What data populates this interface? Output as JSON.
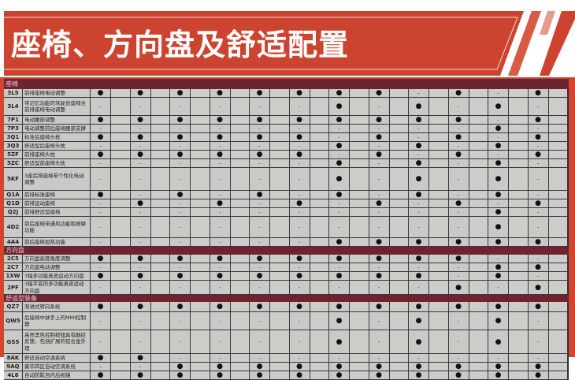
{
  "title": "座椅、方向盘及舒适配置",
  "colors": {
    "banner": "#cc4430",
    "section_bar": "#6e2330",
    "cell": "#c9c9c6"
  },
  "symbols": {
    "standard": "●",
    "not_available": "-"
  },
  "sections": [
    {
      "label": "座椅",
      "rows": [
        {
          "code": "3L5",
          "desc": "前排座椅电动调整",
          "values": [
            "●",
            "●",
            "●",
            "●",
            "●",
            "●",
            "●",
            "●",
            "-",
            "●",
            "-",
            "●"
          ]
        },
        {
          "code": "3L4",
          "desc": "带记忆功能的驾驶员座椅含前排座椅电动调整",
          "values": [
            "-",
            "-",
            "-",
            "-",
            "-",
            "-",
            "●",
            "-",
            "●",
            "-",
            "●",
            "-"
          ]
        },
        {
          "code": "7P1",
          "desc": "电动腰部调整",
          "values": [
            "●",
            "●",
            "●",
            "●",
            "●",
            "●",
            "●",
            "●",
            "●",
            "●",
            "-",
            "●"
          ]
        },
        {
          "code": "7P3",
          "desc": "电动调整前后座椅腰部支撑",
          "values": [
            "-",
            "-",
            "-",
            "-",
            "-",
            "-",
            "-",
            "-",
            "-",
            "-",
            "●",
            "-"
          ]
        },
        {
          "code": "3Q1",
          "desc": "标准后座椅头枕",
          "values": [
            "●",
            "●",
            "●",
            "●",
            "●",
            "●",
            "-",
            "●",
            "-",
            "●",
            "-",
            "●"
          ]
        },
        {
          "code": "3Q3",
          "desc": "舒适型后座椅头枕",
          "values": [
            "-",
            "-",
            "-",
            "-",
            "-",
            "-",
            "●",
            "-",
            "●",
            "-",
            "●",
            "-"
          ]
        },
        {
          "code": "5ZF",
          "desc": "前排座椅头枕",
          "values": [
            "●",
            "●",
            "●",
            "●",
            "●",
            "●",
            "-",
            "●",
            "-",
            "●",
            "-",
            "●"
          ]
        },
        {
          "code": "5ZC",
          "desc": "舒适型前座椅头枕",
          "values": [
            "-",
            "-",
            "-",
            "-",
            "-",
            "-",
            "●",
            "-",
            "●",
            "-",
            "●",
            "-"
          ]
        },
        {
          "code": "5KF",
          "desc": "3座后排座椅带个性化电动调整",
          "values": [
            "-",
            "-",
            "-",
            "-",
            "-",
            "-",
            "●",
            "-",
            "●",
            "-",
            "●",
            "-"
          ]
        },
        {
          "code": "Q1A",
          "desc": "前排标准座椅",
          "values": [
            "●",
            "-",
            "●",
            "-",
            "●",
            "-",
            "●",
            "-",
            "●",
            "-",
            "●",
            "-"
          ]
        },
        {
          "code": "Q1D",
          "desc": "前排运动座椅",
          "values": [
            "-",
            "●",
            "-",
            "●",
            "-",
            "●",
            "-",
            "●",
            "-",
            "●",
            "-",
            "●"
          ]
        },
        {
          "code": "Q2J",
          "desc": "前排舒适型座椅",
          "values": [
            "-",
            "-",
            "-",
            "-",
            "-",
            "-",
            "-",
            "-",
            "-",
            "-",
            "●",
            "-"
          ]
        },
        {
          "code": "4D2",
          "desc": "前后座椅带通风功能和按摩功能",
          "values": [
            "-",
            "-",
            "-",
            "-",
            "-",
            "-",
            "-",
            "-",
            "-",
            "-",
            "●",
            "-"
          ]
        },
        {
          "code": "4A4",
          "desc": "前后座椅加热功能",
          "values": [
            "-",
            "-",
            "-",
            "-",
            "-",
            "-",
            "●",
            "●",
            "●",
            "●",
            "●",
            "●"
          ]
        }
      ]
    },
    {
      "label": "方向盘",
      "rows": [
        {
          "code": "2C5",
          "desc": "方向盘高度角度调整",
          "values": [
            "●",
            "●",
            "●",
            "●",
            "●",
            "●",
            "●",
            "●",
            "●",
            "●",
            "-",
            "-"
          ]
        },
        {
          "code": "2C7",
          "desc": "方向盘电动调整",
          "values": [
            "-",
            "-",
            "-",
            "-",
            "-",
            "-",
            "-",
            "-",
            "-",
            "-",
            "●",
            "●"
          ]
        },
        {
          "code": "1XW",
          "desc": "3辐多功能真皮运动方向盘",
          "values": [
            "●",
            "●",
            "●",
            "●",
            "●",
            "●",
            "●",
            "●",
            "●",
            "-",
            "●",
            "-"
          ]
        },
        {
          "code": "2PF",
          "desc": "3辐平底的多功能真皮运动方向盘",
          "values": [
            "-",
            "-",
            "-",
            "-",
            "-",
            "-",
            "-",
            "-",
            "-",
            "●",
            "-",
            "●"
          ]
        }
      ]
    },
    {
      "label": "舒适型装备",
      "rows": [
        {
          "code": "QZ7",
          "desc": "渐进式转向系统",
          "values": [
            "●",
            "●",
            "●",
            "●",
            "●",
            "●",
            "●",
            "●",
            "●",
            "●",
            "●",
            "●"
          ]
        },
        {
          "code": "QW5",
          "desc": "后座椅中扶手上的MMI控制器",
          "values": [
            "-",
            "-",
            "-",
            "-",
            "-",
            "-",
            "●",
            "-",
            "●",
            "-",
            "●",
            "-"
          ]
        },
        {
          "code": "GS5",
          "desc": "高亮黑色控制按钮具有触控反馈，包括扩展的铝合金外观",
          "values": [
            "-",
            "-",
            "-",
            "-",
            "-",
            "-",
            "●",
            "-",
            "●",
            "-",
            "●",
            "-"
          ]
        },
        {
          "code": "8AK",
          "desc": "舒适自动空调系统",
          "values": [
            "●",
            "●",
            "-",
            "-",
            "-",
            "-",
            "-",
            "-",
            "-",
            "-",
            "-",
            "-"
          ]
        },
        {
          "code": "9AQ",
          "desc": "豪华四区自动空调系统",
          "values": [
            "-",
            "-",
            "●",
            "●",
            "●",
            "●",
            "●",
            "●",
            "●",
            "●",
            "●",
            "●"
          ]
        },
        {
          "code": "4L6",
          "desc": "自动防眩目内后视镜",
          "values": [
            "●",
            "●",
            "●",
            "●",
            "●",
            "●",
            "●",
            "●",
            "●",
            "●",
            "●",
            "●"
          ]
        }
      ]
    }
  ]
}
